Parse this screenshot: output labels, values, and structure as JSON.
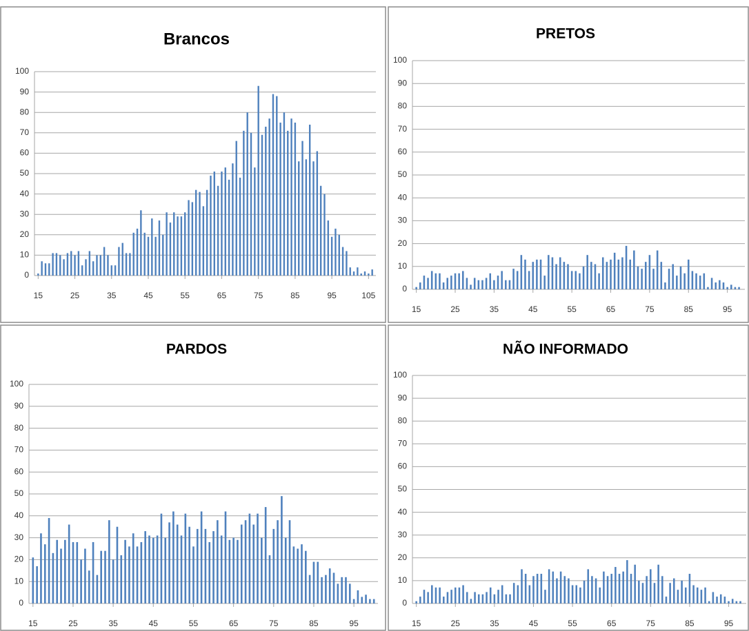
{
  "chart_data": [
    {
      "type": "bar",
      "title": "Brancos",
      "color": "#4f81bd",
      "grid": true,
      "xlim": [
        14,
        107
      ],
      "xticks": [
        15,
        25,
        35,
        45,
        55,
        65,
        75,
        85,
        95,
        105
      ],
      "ylim": [
        0,
        100
      ],
      "yticks": [
        0,
        10,
        20,
        30,
        40,
        50,
        60,
        70,
        80,
        90,
        100
      ],
      "x": [
        15,
        16,
        17,
        18,
        19,
        20,
        21,
        22,
        23,
        24,
        25,
        26,
        27,
        28,
        29,
        30,
        31,
        32,
        33,
        34,
        35,
        36,
        37,
        38,
        39,
        40,
        41,
        42,
        43,
        44,
        45,
        46,
        47,
        48,
        49,
        50,
        51,
        52,
        53,
        54,
        55,
        56,
        57,
        58,
        59,
        60,
        61,
        62,
        63,
        64,
        65,
        66,
        67,
        68,
        69,
        70,
        71,
        72,
        73,
        74,
        75,
        76,
        77,
        78,
        79,
        80,
        81,
        82,
        83,
        84,
        85,
        86,
        87,
        88,
        89,
        90,
        91,
        92,
        93,
        94,
        95,
        96,
        97,
        98,
        99,
        100,
        101,
        102,
        103,
        104,
        105,
        106
      ],
      "values": [
        1,
        7,
        6,
        6,
        11,
        11,
        10,
        8,
        11,
        12,
        10,
        12,
        5,
        8,
        12,
        7,
        10,
        10,
        14,
        10,
        5,
        5,
        14,
        16,
        11,
        11,
        21,
        23,
        32,
        21,
        19,
        28,
        19,
        27,
        20,
        31,
        26,
        31,
        29,
        29,
        31,
        37,
        36,
        42,
        41,
        34,
        42,
        49,
        51,
        44,
        51,
        53,
        47,
        55,
        66,
        48,
        71,
        80,
        70,
        53,
        93,
        69,
        73,
        77,
        89,
        88,
        75,
        80,
        71,
        77,
        75,
        56,
        66,
        57,
        74,
        56,
        61,
        44,
        40,
        27,
        19,
        23,
        20,
        14,
        12,
        4,
        2,
        4,
        1,
        2,
        1,
        3
      ]
    },
    {
      "type": "bar",
      "title": "PRETOS",
      "color": "#4f81bd",
      "grid": true,
      "xlim": [
        14,
        99.5
      ],
      "xticks": [
        15,
        25,
        35,
        45,
        55,
        65,
        75,
        85,
        95
      ],
      "ylim": [
        0,
        100
      ],
      "yticks": [
        0,
        10,
        20,
        30,
        40,
        50,
        60,
        70,
        80,
        90,
        100
      ],
      "x": [
        15,
        16,
        17,
        18,
        19,
        20,
        21,
        22,
        23,
        24,
        25,
        26,
        27,
        28,
        29,
        30,
        31,
        32,
        33,
        34,
        35,
        36,
        37,
        38,
        39,
        40,
        41,
        42,
        43,
        44,
        45,
        46,
        47,
        48,
        49,
        50,
        51,
        52,
        53,
        54,
        55,
        56,
        57,
        58,
        59,
        60,
        61,
        62,
        63,
        64,
        65,
        66,
        67,
        68,
        69,
        70,
        71,
        72,
        73,
        74,
        75,
        76,
        77,
        78,
        79,
        80,
        81,
        82,
        83,
        84,
        85,
        86,
        87,
        88,
        89,
        90,
        91,
        92,
        93,
        94,
        95,
        96,
        97,
        98
      ],
      "values": [
        1,
        3,
        6,
        5,
        8,
        7,
        7,
        3,
        5,
        6,
        7,
        7,
        8,
        5,
        2,
        5,
        4,
        4,
        5,
        7,
        4,
        6,
        8,
        4,
        4,
        9,
        8,
        15,
        13,
        8,
        12,
        13,
        13,
        6,
        15,
        14,
        11,
        14,
        12,
        11,
        8,
        8,
        7,
        10,
        15,
        12,
        11,
        7,
        14,
        12,
        13,
        16,
        13,
        14,
        19,
        13,
        17,
        10,
        9,
        12,
        15,
        9,
        17,
        12,
        3,
        9,
        11,
        6,
        10,
        7,
        13,
        8,
        7,
        6,
        7,
        1,
        5,
        3,
        4,
        3,
        1,
        2,
        1,
        1
      ]
    },
    {
      "type": "bar",
      "title": "PARDOS",
      "color": "#4f81bd",
      "grid": true,
      "xlim": [
        14,
        101
      ],
      "xticks": [
        15,
        25,
        35,
        45,
        55,
        65,
        75,
        85,
        95
      ],
      "ylim": [
        0,
        100
      ],
      "yticks": [
        0,
        10,
        20,
        30,
        40,
        50,
        60,
        70,
        80,
        90,
        100
      ],
      "x": [
        15,
        16,
        17,
        18,
        19,
        20,
        21,
        22,
        23,
        24,
        25,
        26,
        27,
        28,
        29,
        30,
        31,
        32,
        33,
        34,
        35,
        36,
        37,
        38,
        39,
        40,
        41,
        42,
        43,
        44,
        45,
        46,
        47,
        48,
        49,
        50,
        51,
        52,
        53,
        54,
        55,
        56,
        57,
        58,
        59,
        60,
        61,
        62,
        63,
        64,
        65,
        66,
        67,
        68,
        69,
        70,
        71,
        72,
        73,
        74,
        75,
        76,
        77,
        78,
        79,
        80,
        81,
        82,
        83,
        84,
        85,
        86,
        87,
        88,
        89,
        90,
        91,
        92,
        93,
        94,
        95,
        96,
        97,
        98,
        99,
        100
      ],
      "values": [
        21,
        17,
        32,
        27,
        39,
        23,
        29,
        25,
        29,
        36,
        28,
        28,
        20,
        25,
        15,
        28,
        13,
        24,
        24,
        38,
        20,
        35,
        22,
        29,
        26,
        32,
        26,
        28,
        33,
        31,
        30,
        31,
        41,
        30,
        37,
        42,
        36,
        31,
        41,
        35,
        26,
        34,
        42,
        34,
        28,
        33,
        38,
        31,
        42,
        29,
        30,
        29,
        36,
        38,
        41,
        36,
        41,
        30,
        44,
        22,
        34,
        38,
        49,
        30,
        38,
        26,
        25,
        27,
        24,
        13,
        19,
        19,
        12,
        13,
        16,
        14,
        9,
        12,
        12,
        9,
        2,
        6,
        3,
        4,
        2,
        2
      ]
    },
    {
      "type": "bar",
      "title": "NÃO INFORMADO",
      "color": "#4f81bd",
      "grid": true,
      "xlim": [
        14,
        99.5
      ],
      "xticks": [
        15,
        25,
        35,
        45,
        55,
        65,
        75,
        85,
        95
      ],
      "ylim": [
        0,
        100
      ],
      "yticks": [
        0,
        10,
        20,
        30,
        40,
        50,
        60,
        70,
        80,
        90,
        100
      ],
      "x": [
        15,
        16,
        17,
        18,
        19,
        20,
        21,
        22,
        23,
        24,
        25,
        26,
        27,
        28,
        29,
        30,
        31,
        32,
        33,
        34,
        35,
        36,
        37,
        38,
        39,
        40,
        41,
        42,
        43,
        44,
        45,
        46,
        47,
        48,
        49,
        50,
        51,
        52,
        53,
        54,
        55,
        56,
        57,
        58,
        59,
        60,
        61,
        62,
        63,
        64,
        65,
        66,
        67,
        68,
        69,
        70,
        71,
        72,
        73,
        74,
        75,
        76,
        77,
        78,
        79,
        80,
        81,
        82,
        83,
        84,
        85,
        86,
        87,
        88,
        89,
        90,
        91,
        92,
        93,
        94,
        95,
        96,
        97,
        98
      ],
      "values": [
        1,
        3,
        6,
        5,
        8,
        7,
        7,
        3,
        5,
        6,
        7,
        7,
        8,
        5,
        2,
        5,
        4,
        4,
        5,
        7,
        4,
        6,
        8,
        4,
        4,
        9,
        8,
        15,
        13,
        8,
        12,
        13,
        13,
        6,
        15,
        14,
        11,
        14,
        12,
        11,
        8,
        8,
        7,
        10,
        15,
        12,
        11,
        7,
        14,
        12,
        13,
        16,
        13,
        14,
        19,
        13,
        17,
        10,
        9,
        12,
        15,
        9,
        17,
        12,
        3,
        9,
        11,
        6,
        10,
        7,
        13,
        8,
        7,
        6,
        7,
        1,
        5,
        3,
        4,
        3,
        1,
        2,
        1,
        1
      ]
    }
  ]
}
